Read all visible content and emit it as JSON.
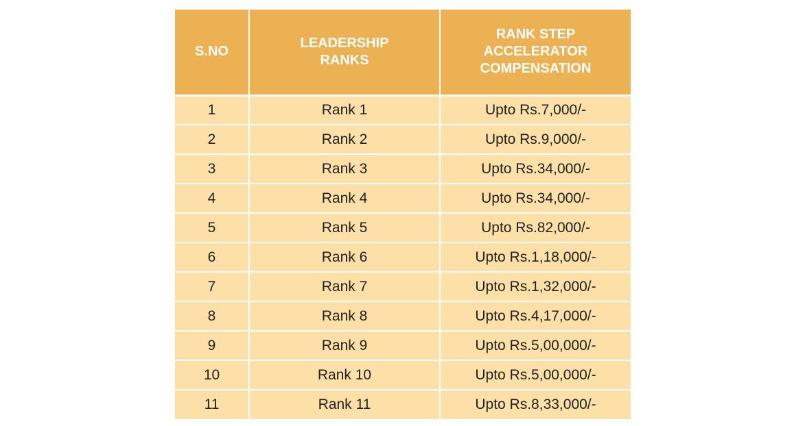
{
  "table": {
    "headers": {
      "sno": "S.NO",
      "leadership": [
        "LEADERSHIP",
        "RANKS"
      ],
      "compensation": [
        "RANK STEP",
        "ACCELERATOR",
        "COMPENSATION"
      ]
    },
    "rows": [
      {
        "sno": "1",
        "rank": "Rank 1",
        "comp": "Upto Rs.7,000/-"
      },
      {
        "sno": "2",
        "rank": "Rank 2",
        "comp": "Upto Rs.9,000/-"
      },
      {
        "sno": "3",
        "rank": "Rank 3",
        "comp": "Upto Rs.34,000/-"
      },
      {
        "sno": "4",
        "rank": "Rank 4",
        "comp": "Upto Rs.34,000/-"
      },
      {
        "sno": "5",
        "rank": "Rank 5",
        "comp": "Upto Rs.82,000/-"
      },
      {
        "sno": "6",
        "rank": "Rank 6",
        "comp": "Upto Rs.1,18,000/-"
      },
      {
        "sno": "7",
        "rank": "Rank 7",
        "comp": "Upto Rs.1,32,000/-"
      },
      {
        "sno": "8",
        "rank": "Rank 8",
        "comp": "Upto Rs.4,17,000/-"
      },
      {
        "sno": "9",
        "rank": "Rank 9",
        "comp": "Upto Rs.5,00,000/-"
      },
      {
        "sno": "10",
        "rank": "Rank 10",
        "comp": "Upto Rs.5,00,000/-"
      },
      {
        "sno": "11",
        "rank": "Rank 11",
        "comp": "Upto Rs.8,33,000/-"
      }
    ]
  },
  "colors": {
    "header_bg": "#ebb152",
    "row_bg": "#fce0a8",
    "header_text": "#ffffff",
    "cell_text": "#1f1f1f"
  }
}
